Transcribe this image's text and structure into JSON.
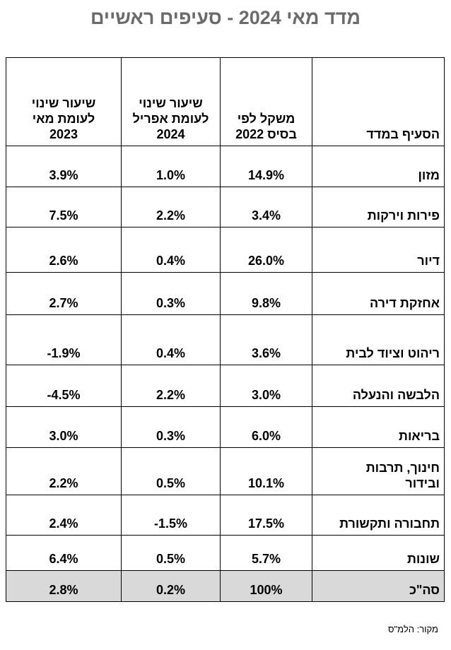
{
  "title": "מדד מאי 2024 - סעיפים ראשיים",
  "table": {
    "headers": {
      "category": "הסעיף במדד",
      "weight": "משקל לפי בסיס 2022",
      "monthly": "שיעור שינוי לעומת אפריל 2024",
      "yearly": "שיעור שינוי לעומת מאי 2023"
    },
    "rows": [
      {
        "category": "מזון",
        "weight": "14.9%",
        "monthly": "1.0%",
        "yearly": "3.9%"
      },
      {
        "category": "פירות וירקות",
        "weight": "3.4%",
        "monthly": "2.2%",
        "yearly": "7.5%"
      },
      {
        "category": "דיור",
        "weight": "26.0%",
        "monthly": "0.4%",
        "yearly": "2.6%"
      },
      {
        "category": "אחזקת דירה",
        "weight": "9.8%",
        "monthly": "0.3%",
        "yearly": "2.7%"
      },
      {
        "category": "ריהוט וציוד לבית",
        "weight": "3.6%",
        "monthly": "0.4%",
        "yearly": "-1.9%"
      },
      {
        "category": "הלבשה והנעלה",
        "weight": "3.0%",
        "monthly": "2.2%",
        "yearly": "-4.5%"
      },
      {
        "category": "בריאות",
        "weight": "6.0%",
        "monthly": "0.3%",
        "yearly": "3.0%"
      },
      {
        "category": "חינוך, תרבות ובידור",
        "weight": "10.1%",
        "monthly": "0.5%",
        "yearly": "2.2%"
      },
      {
        "category": "תחבורה ותקשורת",
        "weight": "17.5%",
        "monthly": "-1.5%",
        "yearly": "2.4%"
      },
      {
        "category": "שונות",
        "weight": "5.7%",
        "monthly": "0.5%",
        "yearly": "6.4%"
      }
    ],
    "total": {
      "category": "סה\"כ",
      "weight": "100%",
      "monthly": "0.2%",
      "yearly": "2.8%"
    }
  },
  "source": "מקור: הלמ\"ס",
  "colors": {
    "title": "#6b6b6b",
    "total_row_bg": "#d9d9d9",
    "border": "#000000"
  }
}
